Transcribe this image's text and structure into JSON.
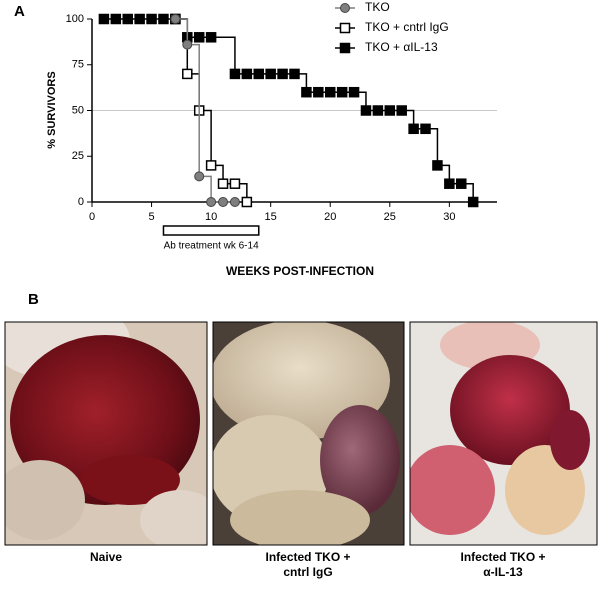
{
  "chart_data": {
    "type": "step",
    "panel_label": "A",
    "y_label": "% SURVIVORS",
    "x_label": "WEEKS POST-INFECTION",
    "annotation": "Ab treatment wk 6-14",
    "treatment_span": [
      6,
      14
    ],
    "xlim": [
      0,
      34
    ],
    "ylim": [
      0,
      100
    ],
    "xticks": [
      0,
      5,
      10,
      15,
      20,
      25,
      30
    ],
    "yticks": [
      0,
      25,
      50,
      75,
      100
    ],
    "reference_line": 50,
    "legend": "top-right",
    "series": [
      {
        "name": "TKO + αIL-13",
        "color": "#000000",
        "marker": "square",
        "x": [
          1,
          2,
          3,
          4,
          5,
          6,
          7,
          8,
          9,
          10,
          12,
          13,
          14,
          15,
          16,
          17,
          18,
          19,
          20,
          21,
          22,
          23,
          24,
          25,
          26,
          27,
          28,
          29,
          30,
          31,
          32
        ],
        "values": [
          100,
          100,
          100,
          100,
          100,
          100,
          100,
          90,
          90,
          90,
          70,
          70,
          70,
          70,
          70,
          70,
          60,
          60,
          60,
          60,
          60,
          50,
          50,
          50,
          50,
          40,
          40,
          20,
          10,
          10,
          0
        ]
      },
      {
        "name": "TKO + cntrl IgG",
        "color": "#000000",
        "marker": "open-square",
        "x": [
          7,
          8,
          9,
          10,
          11,
          12,
          13
        ],
        "values": [
          100,
          70,
          50,
          20,
          10,
          10,
          0
        ]
      },
      {
        "name": "TKO",
        "color": "#7f7f7f",
        "marker": "circle",
        "x": [
          7,
          8,
          9,
          10,
          11,
          12
        ],
        "values": [
          100,
          86,
          14,
          0,
          0,
          0
        ]
      }
    ]
  },
  "panel_b": {
    "label": "B",
    "captions": [
      [
        "Naive"
      ],
      [
        "Infected TKO +",
        "cntrl IgG"
      ],
      [
        "Infected TKO +",
        "α-IL-13"
      ]
    ]
  }
}
